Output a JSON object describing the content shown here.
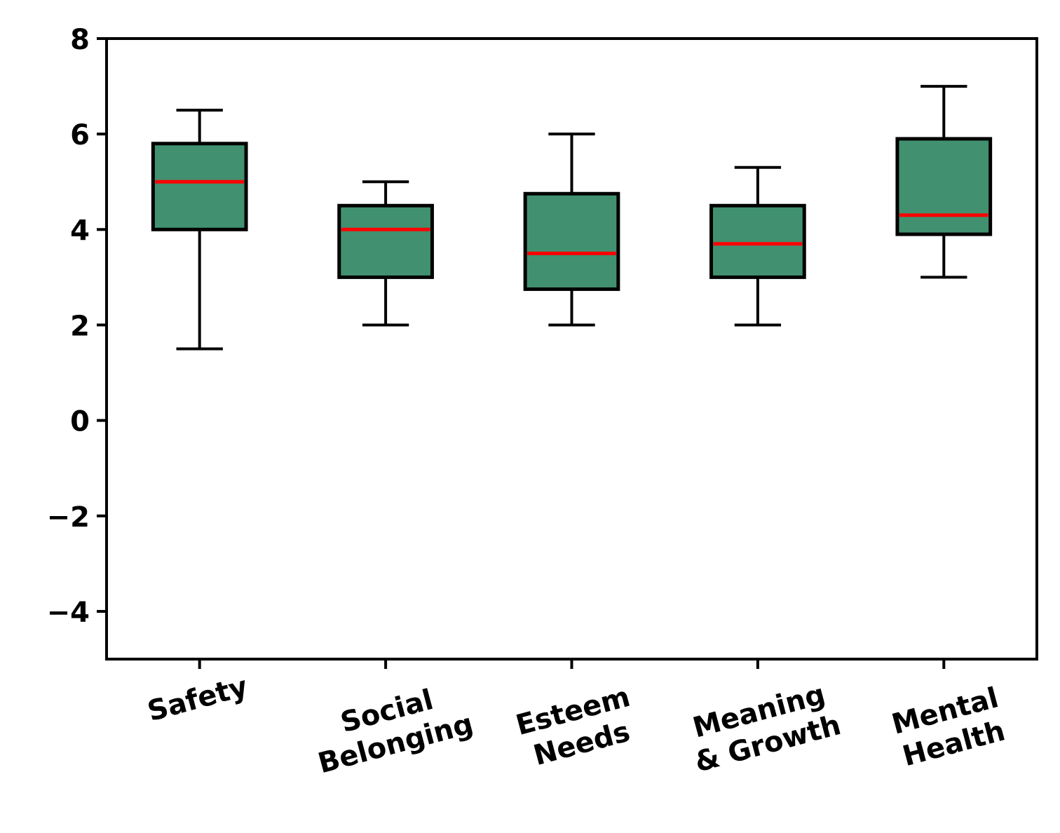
{
  "chart_data": {
    "type": "box",
    "title": "",
    "xlabel": "",
    "ylabel": "",
    "ylim": [
      -5,
      8
    ],
    "yticks": [
      -4,
      -2,
      0,
      2,
      4,
      6,
      8
    ],
    "ytick_labels": [
      "−4",
      "−2",
      "0",
      "2",
      "4",
      "6",
      "8"
    ],
    "grid": false,
    "colors": {
      "box_fill": "#419170",
      "median": "#ff0000",
      "edge": "#000000"
    },
    "categories": [
      {
        "label_lines": [
          "Safety"
        ],
        "whisker_low": 1.5,
        "q1": 4.0,
        "median": 5.0,
        "q3": 5.8,
        "whisker_high": 6.5
      },
      {
        "label_lines": [
          "Social",
          "Belonging"
        ],
        "whisker_low": 2.0,
        "q1": 3.0,
        "median": 4.0,
        "q3": 4.5,
        "whisker_high": 5.0
      },
      {
        "label_lines": [
          "Esteem",
          "Needs"
        ],
        "whisker_low": 2.0,
        "q1": 2.75,
        "median": 3.5,
        "q3": 4.75,
        "whisker_high": 6.0
      },
      {
        "label_lines": [
          "Meaning",
          "& Growth"
        ],
        "whisker_low": 2.0,
        "q1": 3.0,
        "median": 3.7,
        "q3": 4.5,
        "whisker_high": 5.3
      },
      {
        "label_lines": [
          "Mental",
          "Health"
        ],
        "whisker_low": 3.0,
        "q1": 3.9,
        "median": 4.3,
        "q3": 5.9,
        "whisker_high": 7.0
      }
    ]
  }
}
